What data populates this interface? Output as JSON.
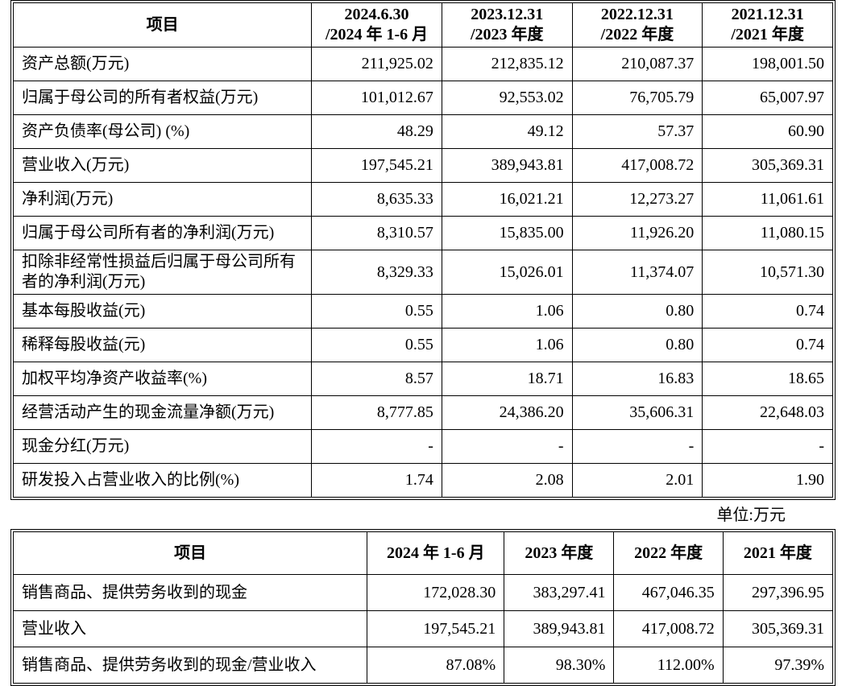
{
  "page": {
    "unit_note": "单位:万元"
  },
  "summary_table": {
    "headers": [
      [
        "项目"
      ],
      [
        "2024.6.30",
        "/2024 年 1-6 月"
      ],
      [
        "2023.12.31",
        "/2023 年度"
      ],
      [
        "2022.12.31",
        "/2022 年度"
      ],
      [
        "2021.12.31",
        "/2021 年度"
      ]
    ],
    "rows": [
      {
        "label": "资产总额(万元)",
        "values": [
          "211,925.02",
          "212,835.12",
          "210,087.37",
          "198,001.50"
        ]
      },
      {
        "label": "归属于母公司的所有者权益(万元)",
        "values": [
          "101,012.67",
          "92,553.02",
          "76,705.79",
          "65,007.97"
        ]
      },
      {
        "label": "资产负债率(母公司) (%)",
        "values": [
          "48.29",
          "49.12",
          "57.37",
          "60.90"
        ]
      },
      {
        "label": "营业收入(万元)",
        "values": [
          "197,545.21",
          "389,943.81",
          "417,008.72",
          "305,369.31"
        ]
      },
      {
        "label": "净利润(万元)",
        "values": [
          "8,635.33",
          "16,021.21",
          "12,273.27",
          "11,061.61"
        ]
      },
      {
        "label": "归属于母公司所有者的净利润(万元)",
        "values": [
          "8,310.57",
          "15,835.00",
          "11,926.20",
          "11,080.15"
        ]
      },
      {
        "label": "扣除非经常性损益后归属于母公司所有者的净利润(万元)",
        "values": [
          "8,329.33",
          "15,026.01",
          "11,374.07",
          "10,571.30"
        ]
      },
      {
        "label": "基本每股收益(元)",
        "values": [
          "0.55",
          "1.06",
          "0.80",
          "0.74"
        ]
      },
      {
        "label": "稀释每股收益(元)",
        "values": [
          "0.55",
          "1.06",
          "0.80",
          "0.74"
        ]
      },
      {
        "label": "加权平均净资产收益率(%)",
        "values": [
          "8.57",
          "18.71",
          "16.83",
          "18.65"
        ]
      },
      {
        "label": "经营活动产生的现金流量净额(万元)",
        "values": [
          "8,777.85",
          "24,386.20",
          "35,606.31",
          "22,648.03"
        ]
      },
      {
        "label": "现金分红(万元)",
        "values": [
          "-",
          "-",
          "-",
          "-"
        ]
      },
      {
        "label": "研发投入占营业收入的比例(%)",
        "values": [
          "1.74",
          "2.08",
          "2.01",
          "1.90"
        ]
      }
    ]
  },
  "cash_revenue_table": {
    "headers": [
      [
        "项目"
      ],
      [
        "2024 年 1-6 月"
      ],
      [
        "2023 年度"
      ],
      [
        "2022 年度"
      ],
      [
        "2021 年度"
      ]
    ],
    "rows": [
      {
        "label": "销售商品、提供劳务收到的现金",
        "values": [
          "172,028.30",
          "383,297.41",
          "467,046.35",
          "297,396.95"
        ]
      },
      {
        "label": "营业收入",
        "values": [
          "197,545.21",
          "389,943.81",
          "417,008.72",
          "305,369.31"
        ]
      },
      {
        "label": "销售商品、提供劳务收到的现金/营业收入",
        "values": [
          "87.08%",
          "98.30%",
          "112.00%",
          "97.39%"
        ]
      }
    ]
  }
}
